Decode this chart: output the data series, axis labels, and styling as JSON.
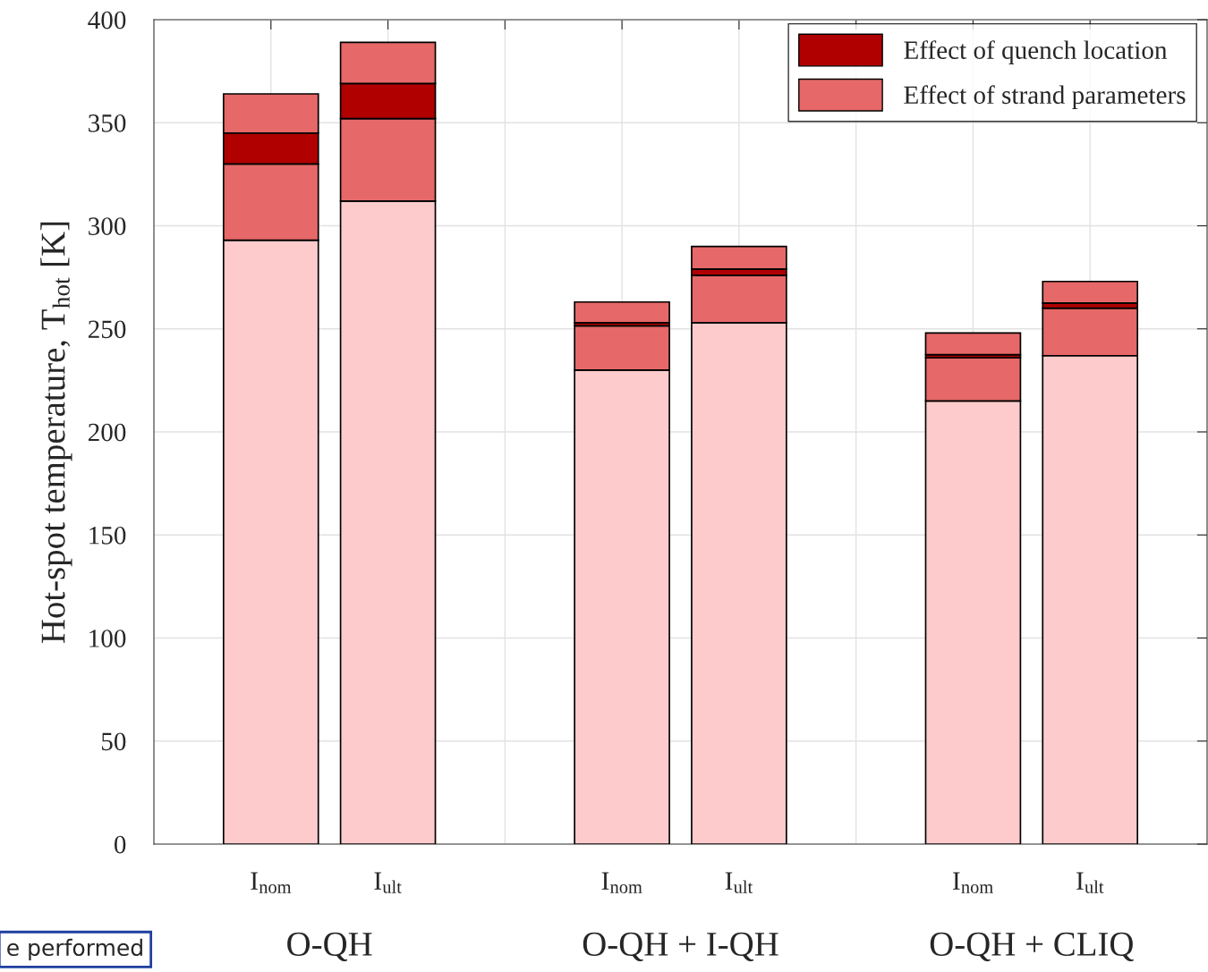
{
  "chart_data": {
    "type": "bar",
    "stacked": true,
    "ylabel": "Hot-spot temperature, T$_{hot}$ [K]",
    "categories": [
      "I$_{nom}$",
      "I$_{ult}$",
      null,
      "I$_{nom}$",
      "I$_{ult}$",
      null,
      "I$_{nom}$",
      "I$_{ult}$"
    ],
    "series": [
      {
        "color": "#fdcbcb",
        "values": [
          293,
          312,
          null,
          230,
          253,
          null,
          215,
          237
        ]
      },
      {
        "name": "Effect of strand parameters",
        "color": "#e66868",
        "values": [
          37,
          40,
          null,
          21.5,
          23,
          null,
          21,
          23
        ]
      },
      {
        "name": "Effect of quench location",
        "color": "#b00000",
        "values": [
          15,
          17,
          null,
          1.5,
          3,
          null,
          1.5,
          2.5
        ]
      },
      {
        "color": "#e66868",
        "values": [
          19,
          20,
          null,
          10,
          11,
          null,
          10.5,
          10.5
        ]
      }
    ],
    "ylim": [
      0,
      400
    ],
    "yticks": [
      0,
      50,
      100,
      150,
      200,
      250,
      300,
      350,
      400
    ],
    "grid": true,
    "legend": "top right",
    "annotations": [
      "O-QH",
      "O-QH + I-QH",
      "O-QH + CLIQ",
      "e performed"
    ]
  }
}
